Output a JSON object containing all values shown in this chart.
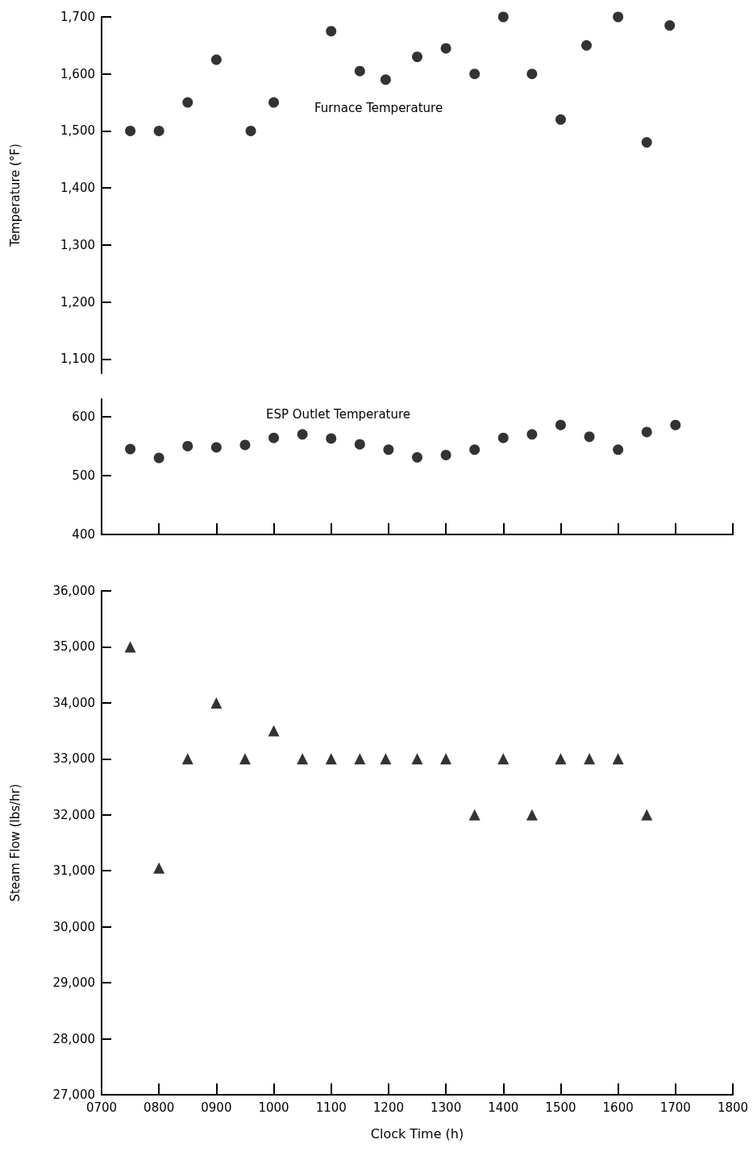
{
  "chart_data": [
    {
      "type": "scatter",
      "ylabel": "Temperature (°F)",
      "xlim": [
        700,
        1800
      ],
      "xticks": [
        700,
        800,
        900,
        1000,
        1100,
        1200,
        1300,
        1400,
        1500,
        1600,
        1700,
        1800
      ],
      "ylim": [
        1075,
        1700
      ],
      "yticks": [
        {
          "value": 1100,
          "label": "1,100"
        },
        {
          "value": 1200,
          "label": "1,200"
        },
        {
          "value": 1300,
          "label": "1,300"
        },
        {
          "value": 1400,
          "label": "1,400"
        },
        {
          "value": 1500,
          "label": "1,500"
        },
        {
          "value": 1600,
          "label": "1,600"
        },
        {
          "value": 1700,
          "label": "1,700"
        }
      ],
      "tick_labels": "y",
      "grid": false,
      "legend": false,
      "marker": "circle",
      "series": [
        {
          "name": "Furnace Temperature",
          "color": "#000000",
          "x": [
            750,
            800,
            850,
            900,
            960,
            1000,
            1100,
            1150,
            1195,
            1250,
            1300,
            1350,
            1400,
            1450,
            1500,
            1545,
            1600,
            1650,
            1690
          ],
          "values": [
            1500,
            1500,
            1550,
            1625,
            1500,
            1550,
            1675,
            1605,
            1590,
            1630,
            1645,
            1600,
            1700,
            1600,
            1520,
            1650,
            1700,
            1480,
            1685
          ]
        }
      ]
    },
    {
      "type": "scatter",
      "xlim": [
        700,
        1800
      ],
      "xticks": [
        700,
        800,
        900,
        1000,
        1100,
        1200,
        1300,
        1400,
        1500,
        1600,
        1700,
        1800
      ],
      "ylim": [
        400,
        630
      ],
      "yticks": [
        400,
        500,
        600
      ],
      "tick_labels": "y",
      "grid": false,
      "legend": false,
      "marker": "circle",
      "series": [
        {
          "name": "ESP Outlet Temperature",
          "color": "#000000",
          "x": [
            750,
            800,
            850,
            900,
            950,
            1000,
            1050,
            1100,
            1150,
            1200,
            1250,
            1300,
            1350,
            1400,
            1450,
            1500,
            1550,
            1600,
            1650,
            1700
          ],
          "values": [
            545,
            530,
            550,
            548,
            552,
            564,
            570,
            563,
            553,
            544,
            531,
            535,
            544,
            564,
            570,
            586,
            566,
            544,
            574,
            586
          ]
        }
      ]
    },
    {
      "type": "scatter",
      "xlabel": "Clock Time (h)",
      "ylabel": "Steam Flow (lbs/hr)",
      "xlim": [
        700,
        1800
      ],
      "xticks": [
        {
          "value": 700,
          "label": "0700"
        },
        {
          "value": 800,
          "label": "0800"
        },
        {
          "value": 900,
          "label": "0900"
        },
        1000,
        1100,
        1200,
        1300,
        1400,
        1500,
        1600,
        1700,
        1800
      ],
      "ylim": [
        27000,
        36000
      ],
      "yticks": [
        {
          "value": 27000,
          "label": "27,000"
        },
        {
          "value": 28000,
          "label": "28,000"
        },
        {
          "value": 29000,
          "label": "29,000"
        },
        {
          "value": 30000,
          "label": "30,000"
        },
        {
          "value": 31000,
          "label": "31,000"
        },
        {
          "value": 32000,
          "label": "32,000"
        },
        {
          "value": 33000,
          "label": "33,000"
        },
        {
          "value": 34000,
          "label": "34,000"
        },
        {
          "value": 35000,
          "label": "35,000"
        },
        {
          "value": 36000,
          "label": "36,000"
        }
      ],
      "grid": false,
      "legend": false,
      "marker": "triangle",
      "series": [
        {
          "color": "#000000",
          "x": [
            750,
            800,
            850,
            900,
            950,
            1000,
            1050,
            1100,
            1150,
            1195,
            1250,
            1300,
            1350,
            1400,
            1450,
            1500,
            1550,
            1600,
            1650
          ],
          "values": [
            35000,
            31050,
            33000,
            34000,
            33000,
            33500,
            33000,
            33000,
            33000,
            33000,
            33000,
            33000,
            32000,
            33000,
            32000,
            33000,
            33000,
            33000,
            32000
          ]
        }
      ]
    }
  ]
}
